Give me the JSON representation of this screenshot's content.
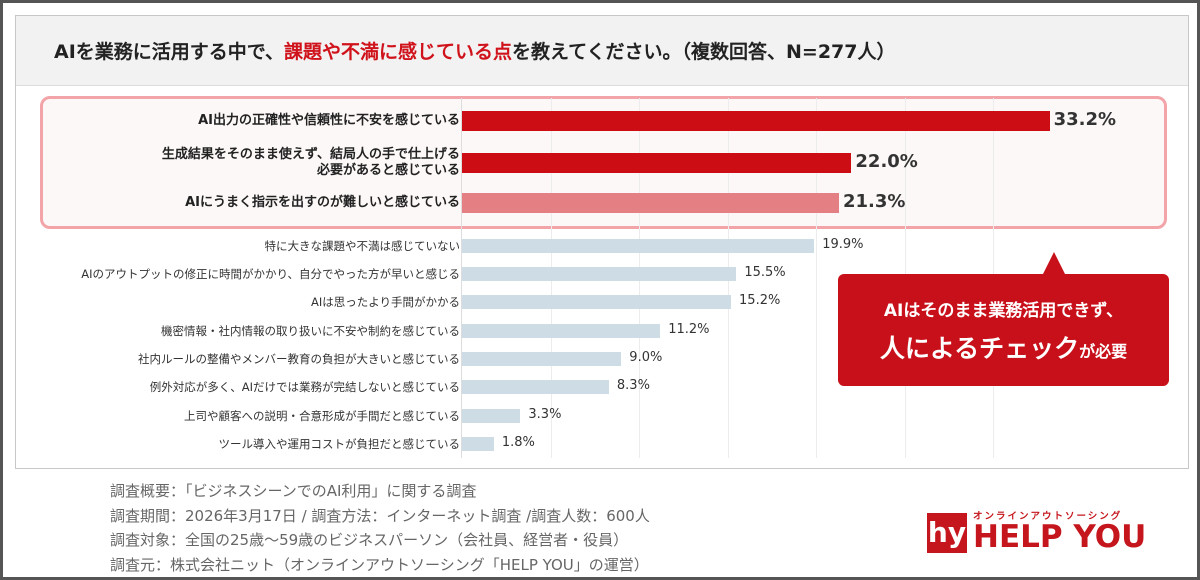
{
  "title": {
    "part1": "AIを業務に活用する中で、",
    "highlight": "課題や不満に感じている点",
    "part2": "を教えてください。（複数回答、N=277人）"
  },
  "chart_data": {
    "type": "bar",
    "orientation": "horizontal",
    "unit": "%",
    "xlim": [
      0,
      35
    ],
    "grid": true,
    "categories": [
      "AI出力の正確性や信頼性に不安を感じている",
      "生成結果をそのまま使えず、結局人の手で仕上げる\n必要があると感じている",
      "AIにうまく指示を出すのが難しいと感じている",
      "特に大きな課題や不満は感じていない",
      "AIのアウトプットの修正に時間がかかり、自分でやった方が早いと感じる",
      "AIは思ったより手間がかかる",
      "機密情報・社内情報の取り扱いに不安や制約を感じている",
      "社内ルールの整備やメンバー教育の負担が大きいと感じている",
      "例外対応が多く、AIだけでは業務が完結しないと感じている",
      "上司や顧客への説明・合意形成が手間だと感じている",
      "ツール導入や運用コストが負担だと感じている"
    ],
    "values": [
      33.2,
      22.0,
      21.3,
      19.9,
      15.5,
      15.2,
      11.2,
      9.0,
      8.3,
      3.3,
      1.8
    ],
    "labels": [
      "33.2%",
      "22.0%",
      "21.3%",
      "19.9%",
      "15.5%",
      "15.2%",
      "11.2%",
      "9.0%",
      "8.3%",
      "3.3%",
      "1.8%"
    ],
    "highlighted_top": 3,
    "colors": {
      "top1": "#cc0e14",
      "top2": "#cc0e14",
      "top3": "#e47f84",
      "rest": "#cedce6"
    }
  },
  "callout": {
    "line1": "AIはそのまま業務活用できず、",
    "line2_big": "人によるチェック",
    "line2_small": "が必要"
  },
  "notes": [
    "調査概要：「ビジネスシーンでのAI利用」に関する調査",
    "調査期間：2026年3月17日 / 調査方法：インターネット調査 /調査人数：600人",
    "調査対象：全国の25歳〜59歳のビジネスパーソン（会社員、経営者・役員）",
    "調査元：株式会社ニット（オンラインアウトソーシング「HELP YOU」の運営）"
  ],
  "logo": {
    "mark": "hy",
    "tagline": "オンラインアウトソーシング",
    "name": "HELP YOU"
  }
}
